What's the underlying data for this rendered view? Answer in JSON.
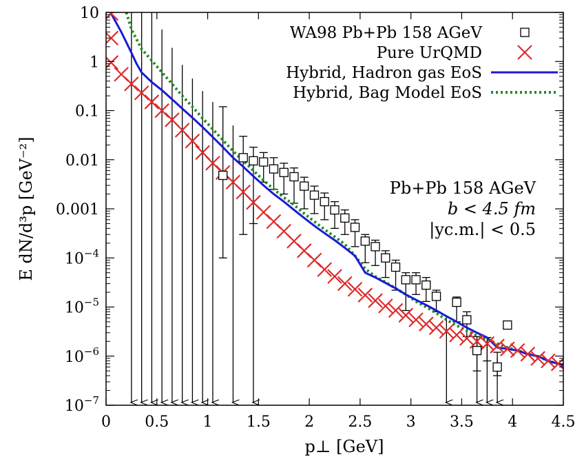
{
  "chart_data": {
    "type": "scatter",
    "title": "",
    "xlabel": "p⊥ [GeV]",
    "ylabel": "E dN/d³p [GeV⁻²]",
    "xlim": [
      0,
      4.5
    ],
    "ylim": [
      1e-07,
      10
    ],
    "yscale": "log",
    "grid": false,
    "legend_position": "top-right",
    "x_ticks": [
      0,
      0.5,
      1,
      1.5,
      2,
      2.5,
      3,
      3.5,
      4,
      4.5
    ],
    "x_tick_labels": [
      "0",
      "0.5",
      "1",
      "1.5",
      "2",
      "2.5",
      "3",
      "3.5",
      "4",
      "4.5"
    ],
    "y_ticks": [
      {
        "value": 10,
        "base": "10",
        "exp": ""
      },
      {
        "value": 1,
        "base": "1",
        "exp": ""
      },
      {
        "value": 0.1,
        "base": "0.1",
        "exp": ""
      },
      {
        "value": 0.01,
        "base": "0.01",
        "exp": ""
      },
      {
        "value": 0.001,
        "base": "0.001",
        "exp": ""
      },
      {
        "value": 0.0001,
        "base": "10",
        "exp": "−4"
      },
      {
        "value": 1e-05,
        "base": "10",
        "exp": "−5"
      },
      {
        "value": 1e-06,
        "base": "10",
        "exp": "−6"
      },
      {
        "value": 1e-07,
        "base": "10",
        "exp": "−7"
      }
    ],
    "annotation": [
      "Pb+Pb 158 AGeV",
      "b < 4.5 fm",
      "|yc.m.| < 0.5"
    ],
    "series": [
      {
        "name": "WA98 Pb+Pb 158 AGeV",
        "marker": "open-square",
        "color": "#000000",
        "points": [
          {
            "x": 1.15,
            "y": 0.0048
          },
          {
            "x": 1.35,
            "y": 0.011
          },
          {
            "x": 1.45,
            "y": 0.0095
          },
          {
            "x": 1.55,
            "y": 0.009
          },
          {
            "x": 1.65,
            "y": 0.0065
          },
          {
            "x": 1.75,
            "y": 0.0055
          },
          {
            "x": 1.85,
            "y": 0.0045
          },
          {
            "x": 1.95,
            "y": 0.0029
          },
          {
            "x": 2.05,
            "y": 0.0019
          },
          {
            "x": 2.15,
            "y": 0.0014
          },
          {
            "x": 2.25,
            "y": 0.00095
          },
          {
            "x": 2.35,
            "y": 0.00065
          },
          {
            "x": 2.45,
            "y": 0.00042
          },
          {
            "x": 2.55,
            "y": 0.00022
          },
          {
            "x": 2.65,
            "y": 0.00017
          },
          {
            "x": 2.75,
            "y": 0.0001
          },
          {
            "x": 2.85,
            "y": 6.5e-05
          },
          {
            "x": 2.95,
            "y": 3.6e-05
          },
          {
            "x": 3.05,
            "y": 3.6e-05
          },
          {
            "x": 3.15,
            "y": 2.8e-05
          },
          {
            "x": 3.25,
            "y": 1.65e-05
          },
          {
            "x": 3.45,
            "y": 1.25e-05
          },
          {
            "x": 3.55,
            "y": 5.5e-06
          },
          {
            "x": 3.65,
            "y": 1.3e-06
          },
          {
            "x": 3.85,
            "y": 6e-07
          },
          {
            "x": 3.95,
            "y": 4.3e-06
          }
        ],
        "error_bars": [
          {
            "x": 1.15,
            "lo": 0.0001,
            "hi": 0.12
          },
          {
            "x": 1.35,
            "lo": 0.0003,
            "hi": 0.03
          },
          {
            "x": 1.45,
            "lo": 0.0005,
            "hi": 0.018
          },
          {
            "x": 1.55,
            "lo": 0.0035,
            "hi": 0.014
          },
          {
            "x": 1.65,
            "lo": 0.0025,
            "hi": 0.011
          },
          {
            "x": 1.75,
            "lo": 0.002,
            "hi": 0.0085
          },
          {
            "x": 1.85,
            "lo": 0.0013,
            "hi": 0.0068
          },
          {
            "x": 1.95,
            "lo": 0.001,
            "hi": 0.0044
          },
          {
            "x": 2.05,
            "lo": 0.0008,
            "hi": 0.0029
          },
          {
            "x": 2.15,
            "lo": 0.0006,
            "hi": 0.0021
          },
          {
            "x": 2.25,
            "lo": 0.0004,
            "hi": 0.0014
          },
          {
            "x": 2.35,
            "lo": 0.0003,
            "hi": 0.00095
          },
          {
            "x": 2.45,
            "lo": 0.00017,
            "hi": 0.0006
          },
          {
            "x": 2.55,
            "lo": 8e-05,
            "hi": 0.0003
          },
          {
            "x": 2.65,
            "lo": 7e-05,
            "hi": 0.00023
          },
          {
            "x": 2.75,
            "lo": 4e-05,
            "hi": 0.00014
          },
          {
            "x": 2.85,
            "lo": 2.2e-05,
            "hi": 9e-05
          },
          {
            "x": 2.95,
            "lo": 8.5e-06,
            "hi": 5e-05
          },
          {
            "x": 3.05,
            "lo": 1.8e-05,
            "hi": 5e-05
          },
          {
            "x": 3.15,
            "lo": 1.3e-05,
            "hi": 4e-05
          },
          {
            "x": 3.25,
            "lo": 8e-06,
            "hi": 2.2e-05
          },
          {
            "x": 3.45,
            "lo": 5e-06,
            "hi": 1.6e-05
          },
          {
            "x": 3.55,
            "lo": 2.5e-06,
            "hi": 8e-06
          },
          {
            "x": 3.65,
            "lo": 5e-07,
            "hi": 2.5e-06
          },
          {
            "x": 3.75,
            "lo": 8e-07,
            "hi": 2.4e-06
          },
          {
            "x": 3.85,
            "lo": 4e-07,
            "hi": 1.2e-06
          }
        ],
        "upper_limits": [
          {
            "x": 0.25,
            "y": 10
          },
          {
            "x": 0.35,
            "y": 10
          },
          {
            "x": 0.45,
            "y": 10
          },
          {
            "x": 0.55,
            "y": 4.5
          },
          {
            "x": 0.65,
            "y": 1.9
          },
          {
            "x": 0.75,
            "y": 0.85
          },
          {
            "x": 0.85,
            "y": 0.45
          },
          {
            "x": 0.95,
            "y": 0.25
          },
          {
            "x": 1.05,
            "y": 0.15
          },
          {
            "x": 1.25,
            "y": 0.05
          },
          {
            "x": 1.45,
            "y": 0.0011
          },
          {
            "x": 3.35,
            "y": 6.5e-06
          },
          {
            "x": 3.65,
            "y": 2.4e-06
          },
          {
            "x": 3.75,
            "y": 2e-06
          },
          {
            "x": 3.85,
            "y": 9e-07
          }
        ]
      },
      {
        "name": "Pure UrQMD",
        "marker": "cross",
        "color": "#e02a2a",
        "points": [
          {
            "x": 0.05,
            "y": 9.5
          },
          {
            "x": 0.05,
            "y": 3
          },
          {
            "x": 0.05,
            "y": 0.95
          },
          {
            "x": 0.15,
            "y": 0.55
          },
          {
            "x": 0.25,
            "y": 0.35
          },
          {
            "x": 0.35,
            "y": 0.23
          },
          {
            "x": 0.45,
            "y": 0.15
          },
          {
            "x": 0.55,
            "y": 0.1
          },
          {
            "x": 0.65,
            "y": 0.065
          },
          {
            "x": 0.75,
            "y": 0.04
          },
          {
            "x": 0.85,
            "y": 0.024
          },
          {
            "x": 0.95,
            "y": 0.014
          },
          {
            "x": 1.05,
            "y": 0.0085
          },
          {
            "x": 1.15,
            "y": 0.0055
          },
          {
            "x": 1.25,
            "y": 0.0035
          },
          {
            "x": 1.35,
            "y": 0.0022
          },
          {
            "x": 1.45,
            "y": 0.00135
          },
          {
            "x": 1.55,
            "y": 0.00085
          },
          {
            "x": 1.65,
            "y": 0.00055
          },
          {
            "x": 1.75,
            "y": 0.00035
          },
          {
            "x": 1.85,
            "y": 0.00022
          },
          {
            "x": 1.95,
            "y": 0.00014
          },
          {
            "x": 2.05,
            "y": 9e-05
          },
          {
            "x": 2.15,
            "y": 5.8e-05
          },
          {
            "x": 2.25,
            "y": 4.2e-05
          },
          {
            "x": 2.35,
            "y": 3e-05
          },
          {
            "x": 2.45,
            "y": 2.3e-05
          },
          {
            "x": 2.55,
            "y": 1.75e-05
          },
          {
            "x": 2.65,
            "y": 1.35e-05
          },
          {
            "x": 2.75,
            "y": 1.05e-05
          },
          {
            "x": 2.85,
            "y": 8.5e-06
          },
          {
            "x": 2.95,
            "y": 6.8e-06
          },
          {
            "x": 3.05,
            "y": 5.5e-06
          },
          {
            "x": 3.15,
            "y": 4.5e-06
          },
          {
            "x": 3.25,
            "y": 3.8e-06
          },
          {
            "x": 3.35,
            "y": 3.2e-06
          },
          {
            "x": 3.45,
            "y": 2.7e-06
          },
          {
            "x": 3.55,
            "y": 2.3e-06
          },
          {
            "x": 3.65,
            "y": 2e-06
          },
          {
            "x": 3.75,
            "y": 1.8e-06
          },
          {
            "x": 3.85,
            "y": 1.6e-06
          },
          {
            "x": 3.95,
            "y": 1.4e-06
          },
          {
            "x": 4.05,
            "y": 1.3e-06
          },
          {
            "x": 4.15,
            "y": 1.1e-06
          },
          {
            "x": 4.25,
            "y": 9e-07
          },
          {
            "x": 4.35,
            "y": 8e-07
          },
          {
            "x": 4.45,
            "y": 7e-07
          }
        ]
      },
      {
        "name": "Hybrid, Hadron gas EoS",
        "line_style": "solid",
        "color": "#1a1ad6",
        "x": [
          0.05,
          0.15,
          0.25,
          0.3,
          0.35,
          0.45,
          0.55,
          0.65,
          0.75,
          0.85,
          0.95,
          1.05,
          1.15,
          1.25,
          1.35,
          1.45,
          1.55,
          1.65,
          1.75,
          1.85,
          1.95,
          2.05,
          2.15,
          2.25,
          2.35,
          2.45,
          2.55,
          2.65,
          2.75,
          2.85,
          2.95,
          3.05,
          3.15,
          3.25,
          3.35,
          3.45,
          3.55,
          3.65,
          3.75,
          3.85,
          3.95,
          4.05,
          4.15,
          4.25,
          4.35,
          4.45,
          4.5
        ],
        "y": [
          9.5,
          4,
          1.5,
          0.9,
          0.6,
          0.38,
          0.26,
          0.17,
          0.11,
          0.072,
          0.046,
          0.029,
          0.018,
          0.011,
          0.0072,
          0.0046,
          0.003,
          0.002,
          0.0014,
          0.00095,
          0.00065,
          0.00045,
          0.00032,
          0.00023,
          0.00016,
          0.00011,
          5e-05,
          4e-05,
          3.1e-05,
          2.4e-05,
          1.8e-05,
          1.4e-05,
          1.1e-05,
          8.5e-06,
          6.5e-06,
          5e-06,
          3.8e-06,
          3e-06,
          2.4e-06,
          1.5e-06,
          1.4e-06,
          1.3e-06,
          1.1e-06,
          1e-06,
          8e-07,
          7e-07,
          6.5e-07
        ]
      },
      {
        "name": "Hybrid, Bag Model EoS",
        "line_style": "dotted",
        "color": "#1f8a1f",
        "x": [
          0.2,
          0.25,
          0.35,
          0.45,
          0.55,
          0.65,
          0.75,
          0.85,
          0.95,
          1.05,
          1.15,
          1.25,
          1.35,
          1.45,
          1.55,
          1.65,
          1.75,
          1.85,
          1.95,
          2.05,
          2.15,
          2.25,
          2.35,
          2.45,
          2.55,
          2.65,
          2.75,
          2.85,
          2.95,
          3.05,
          3.15,
          3.25,
          3.35,
          3.45,
          3.55,
          3.65,
          3.75,
          3.85,
          3.95,
          4.05,
          4.15,
          4.25,
          4.35,
          4.45,
          4.5
        ],
        "y": [
          10,
          4.5,
          1.8,
          1.05,
          0.6,
          0.35,
          0.2,
          0.12,
          0.07,
          0.042,
          0.025,
          0.015,
          0.0095,
          0.006,
          0.0038,
          0.0025,
          0.0017,
          0.0012,
          0.0008,
          0.00055,
          0.00038,
          0.00027,
          0.00019,
          0.00011,
          6e-05,
          4.2e-05,
          3.2e-05,
          2.4e-05,
          1.8e-05,
          1.3e-05,
          1e-05,
          7.5e-06,
          5.5e-06,
          4.2e-06,
          3.3e-06,
          2.6e-06,
          2.2e-06,
          1.8e-06,
          1.5e-06,
          1.3e-06,
          1.1e-06,
          1e-06,
          8e-07,
          7e-07,
          6e-07
        ]
      }
    ]
  }
}
